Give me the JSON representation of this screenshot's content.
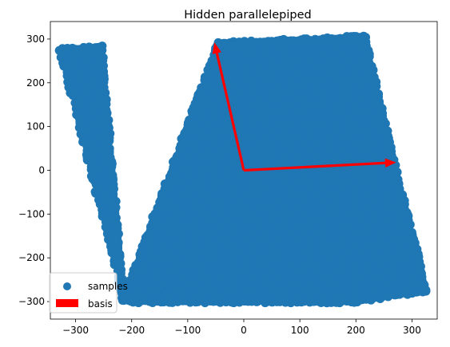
{
  "chart_data": {
    "type": "scatter",
    "title": "Hidden parallelepiped",
    "xlabel": "",
    "ylabel": "",
    "xlim": [
      -345,
      345
    ],
    "ylim": [
      -340,
      340
    ],
    "xticks": [
      -300,
      -200,
      -100,
      0,
      100,
      200,
      300
    ],
    "yticks": [
      -300,
      -200,
      -100,
      0,
      100,
      200,
      300
    ],
    "grid": false,
    "legend_position": "lower-left",
    "series": [
      {
        "name": "samples",
        "kind": "scatter",
        "color": "#1f77b4",
        "region_vertices": [
          [
            -330,
            275
          ],
          [
            -255,
            282
          ],
          [
            -215,
            -300
          ],
          [
            -45,
            290
          ],
          [
            215,
            305
          ],
          [
            262,
            40
          ],
          [
            325,
            -275
          ],
          [
            195,
            -300
          ],
          [
            -215,
            -300
          ]
        ],
        "parallelepiped": {
          "origin": [
            0,
            0
          ],
          "basis": [
            [
              270,
              18
            ],
            [
              -52,
              290
            ]
          ],
          "coef_range": [
            -1.1,
            1.1
          ]
        }
      },
      {
        "name": "basis",
        "kind": "arrows",
        "color": "#ff0000",
        "origin": [
          0,
          0
        ],
        "vectors": [
          [
            270,
            18
          ],
          [
            -52,
            290
          ]
        ]
      }
    ]
  }
}
